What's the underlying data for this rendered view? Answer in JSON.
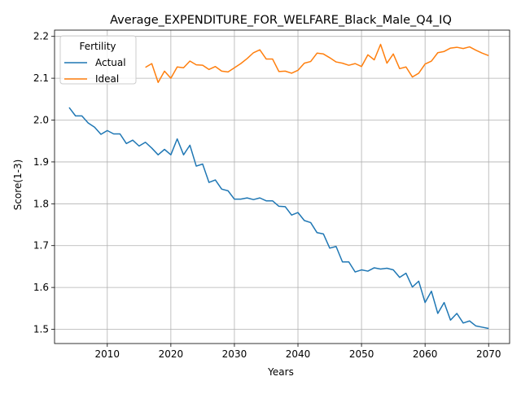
{
  "chart_data": {
    "type": "line",
    "title": "Average_EXPENDITURE_FOR_WELFARE_Black_Male_Q4_IQ",
    "xlabel": "Years",
    "ylabel": "Score(1-3)",
    "xlim": [
      2001.7,
      2073.3
    ],
    "ylim": [
      1.466,
      2.215
    ],
    "xticks": [
      2010,
      2020,
      2030,
      2040,
      2050,
      2060,
      2070
    ],
    "yticks": [
      1.5,
      1.6,
      1.7,
      1.8,
      1.9,
      2.0,
      2.1,
      2.2
    ],
    "grid": true,
    "legend": {
      "title": "Fertility",
      "position": "top-left"
    },
    "series": [
      {
        "name": "Actual",
        "color": "#1f77b4",
        "x": [
          2004,
          2005,
          2006,
          2007,
          2008,
          2009,
          2010,
          2011,
          2012,
          2013,
          2014,
          2015,
          2016,
          2017,
          2018,
          2019,
          2020,
          2021,
          2022,
          2023,
          2024,
          2025,
          2026,
          2027,
          2028,
          2029,
          2030,
          2031,
          2032,
          2033,
          2034,
          2035,
          2036,
          2037,
          2038,
          2039,
          2040,
          2041,
          2042,
          2043,
          2044,
          2045,
          2046,
          2047,
          2048,
          2049,
          2050,
          2051,
          2052,
          2053,
          2054,
          2055,
          2056,
          2057,
          2058,
          2059,
          2060,
          2061,
          2062,
          2063,
          2064,
          2065,
          2066,
          2067,
          2068,
          2069,
          2070
        ],
        "values": [
          2.03,
          2.01,
          2.01,
          1.993,
          1.983,
          1.966,
          1.975,
          1.967,
          1.967,
          1.944,
          1.952,
          1.938,
          1.947,
          1.933,
          1.917,
          1.93,
          1.917,
          1.955,
          1.917,
          1.94,
          1.89,
          1.895,
          1.851,
          1.857,
          1.835,
          1.831,
          1.811,
          1.811,
          1.814,
          1.81,
          1.814,
          1.807,
          1.807,
          1.794,
          1.793,
          1.773,
          1.779,
          1.76,
          1.755,
          1.731,
          1.728,
          1.694,
          1.698,
          1.661,
          1.661,
          1.637,
          1.642,
          1.639,
          1.647,
          1.644,
          1.646,
          1.642,
          1.624,
          1.634,
          1.601,
          1.615,
          1.564,
          1.591,
          1.538,
          1.564,
          1.522,
          1.538,
          1.515,
          1.52,
          1.508,
          1.505,
          1.502
        ]
      },
      {
        "name": "Ideal",
        "color": "#ff7f0e",
        "x": [
          2016,
          2017,
          2018,
          2019,
          2020,
          2021,
          2022,
          2023,
          2024,
          2025,
          2026,
          2027,
          2028,
          2029,
          2030,
          2031,
          2032,
          2033,
          2034,
          2035,
          2036,
          2037,
          2038,
          2039,
          2040,
          2041,
          2042,
          2043,
          2044,
          2045,
          2046,
          2047,
          2048,
          2049,
          2050,
          2051,
          2052,
          2053,
          2054,
          2055,
          2056,
          2057,
          2058,
          2059,
          2060,
          2061,
          2062,
          2063,
          2064,
          2065,
          2066,
          2067,
          2068,
          2069,
          2070
        ],
        "values": [
          2.126,
          2.135,
          2.09,
          2.117,
          2.1,
          2.127,
          2.125,
          2.141,
          2.132,
          2.131,
          2.121,
          2.128,
          2.117,
          2.115,
          2.125,
          2.135,
          2.147,
          2.161,
          2.168,
          2.146,
          2.146,
          2.116,
          2.117,
          2.112,
          2.119,
          2.136,
          2.14,
          2.16,
          2.158,
          2.149,
          2.139,
          2.136,
          2.131,
          2.135,
          2.128,
          2.156,
          2.144,
          2.181,
          2.136,
          2.158,
          2.123,
          2.127,
          2.103,
          2.112,
          2.134,
          2.141,
          2.161,
          2.164,
          2.172,
          2.174,
          2.171,
          2.175,
          2.167,
          2.16,
          2.154
        ]
      }
    ]
  }
}
